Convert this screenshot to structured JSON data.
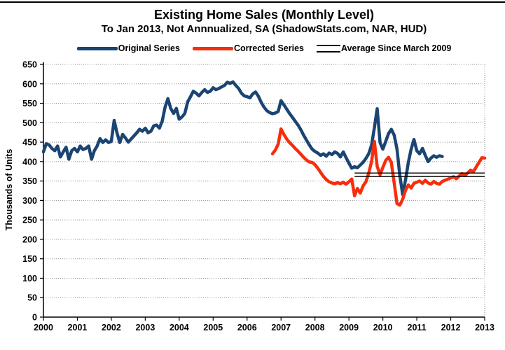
{
  "title": "Existing Home Sales (Monthly Level)",
  "subtitle": "To Jan 2013, Not Annnualized, SA (ShadowStats.com, NAR, HUD)",
  "legend": [
    {
      "label": "Original Series",
      "color": "#1a4572",
      "style": "line"
    },
    {
      "label": "Corrected Series",
      "color": "#f62e0c",
      "style": "line"
    },
    {
      "label": "Average Since March 2009",
      "color": "#000000",
      "style": "double"
    }
  ],
  "chart_data": {
    "type": "line",
    "title": "Existing Home Sales (Monthly Level)",
    "subtitle": "To Jan 2013, Not Annnualized, SA (ShadowStats.com, NAR, HUD)",
    "xlabel": "",
    "ylabel": "Thousands of Units",
    "ylim": [
      0,
      650
    ],
    "yticks": [
      0,
      50,
      100,
      150,
      200,
      250,
      300,
      350,
      400,
      450,
      500,
      550,
      600,
      650
    ],
    "xticks": [
      "2000",
      "2001",
      "2002",
      "2003",
      "2004",
      "2005",
      "2006",
      "2007",
      "2008",
      "2009",
      "2010",
      "2011",
      "2012",
      "2013"
    ],
    "x_unit": "month_index_from_2000_01",
    "grid": "horizontal-dotted",
    "legend_position": "top-center",
    "series": [
      {
        "name": "Original Series",
        "data_name": "original-series-line",
        "color": "#1a4572",
        "start": "2000-01",
        "start_month": 0,
        "values": [
          425,
          446,
          443,
          434,
          428,
          440,
          412,
          425,
          437,
          406,
          428,
          434,
          425,
          440,
          431,
          434,
          440,
          406,
          428,
          440,
          459,
          449,
          456,
          449,
          452,
          506,
          474,
          449,
          470,
          461,
          450,
          458,
          466,
          474,
          483,
          478,
          486,
          474,
          478,
          492,
          494,
          486,
          504,
          540,
          562,
          537,
          524,
          537,
          509,
          515,
          524,
          554,
          567,
          581,
          576,
          569,
          578,
          585,
          578,
          581,
          590,
          585,
          588,
          592,
          596,
          604,
          601,
          605,
          596,
          588,
          576,
          569,
          567,
          564,
          574,
          579,
          568,
          552,
          540,
          531,
          526,
          523,
          525,
          529,
          557,
          546,
          535,
          524,
          514,
          504,
          494,
          482,
          468,
          455,
          443,
          432,
          426,
          422,
          416,
          420,
          414,
          422,
          418,
          425,
          421,
          412,
          425,
          410,
          396,
          383,
          387,
          384,
          391,
          398,
          408,
          420,
          442,
          487,
          536,
          449,
          432,
          452,
          472,
          483,
          468,
          432,
          365,
          315,
          352,
          398,
          432,
          457,
          428,
          420,
          434,
          416,
          400,
          409,
          415,
          411,
          415,
          413
        ]
      },
      {
        "name": "Corrected Series",
        "data_name": "corrected-series-line",
        "color": "#f62e0c",
        "start": "2006-10",
        "start_month": 81,
        "values": [
          420,
          430,
          445,
          484,
          470,
          458,
          449,
          442,
          434,
          427,
          419,
          411,
          404,
          399,
          398,
          392,
          383,
          372,
          362,
          354,
          348,
          345,
          343,
          346,
          343,
          347,
          342,
          348,
          355,
          312,
          331,
          319,
          337,
          348,
          370,
          400,
          452,
          388,
          366,
          385,
          403,
          411,
          398,
          345,
          292,
          288,
          303,
          326,
          340,
          332,
          344,
          347,
          350,
          344,
          352,
          345,
          342,
          349,
          344,
          342,
          349,
          352,
          355,
          358,
          361,
          356,
          363,
          369,
          364,
          371,
          378,
          374,
          386,
          398,
          410,
          409
        ]
      },
      {
        "name": "Average Since March 2009",
        "data_name": "average-line",
        "type": "hline",
        "color": "#000000",
        "value": 366,
        "from": "2009-03",
        "to": "2013-01",
        "from_month": 110,
        "to_month": 156
      }
    ]
  }
}
